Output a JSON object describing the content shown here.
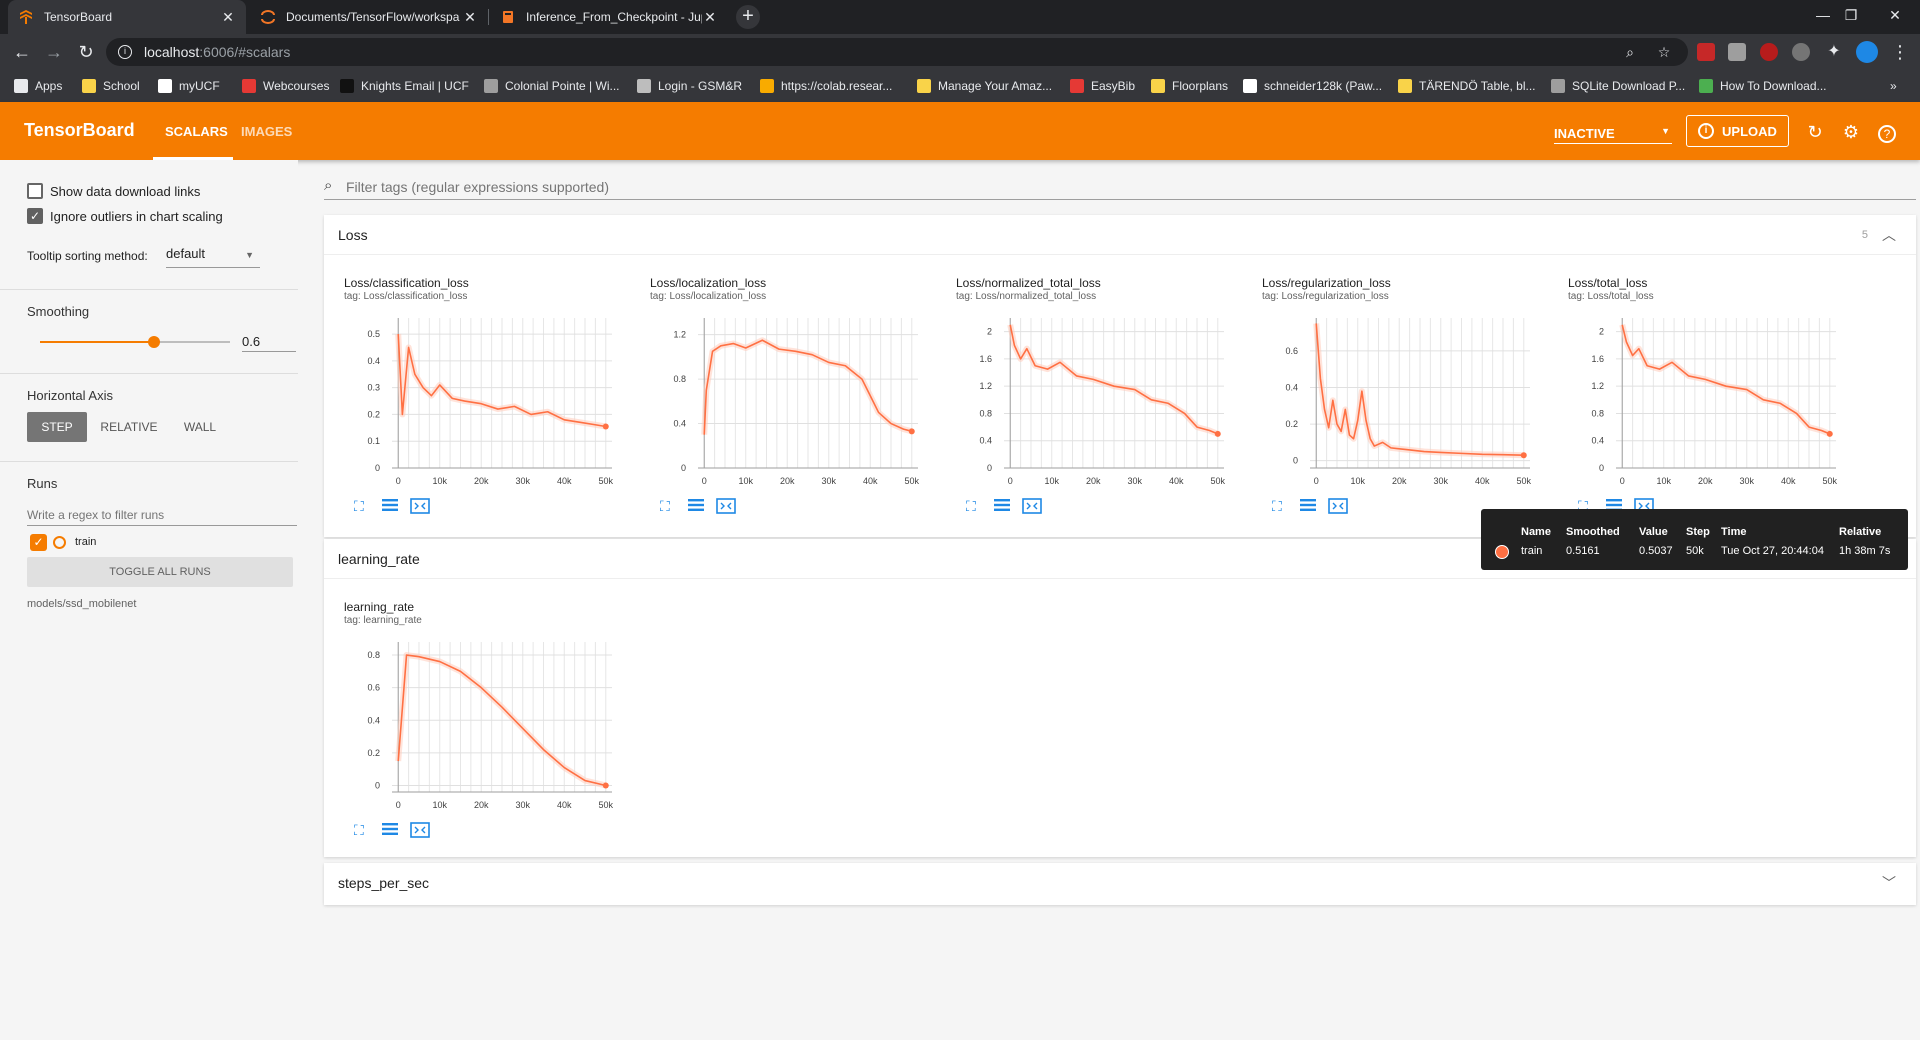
{
  "browser": {
    "tabs": [
      {
        "title": "TensorBoard",
        "active": true
      },
      {
        "title": "Documents/TensorFlow/workspa",
        "active": false
      },
      {
        "title": "Inference_From_Checkpoint - Jup",
        "active": false
      }
    ],
    "url_host": "localhost",
    "url_path": ":6006/#scalars",
    "bookmarks": [
      {
        "label": "Apps",
        "icon": "apps-grid-icon",
        "color": "#e8eaed"
      },
      {
        "label": "School",
        "icon": "folder-icon",
        "color": "#f9d349"
      },
      {
        "label": "myUCF",
        "icon": "ucf-icon",
        "color": "#ffffff"
      },
      {
        "label": "Webcourses",
        "icon": "canvas-icon",
        "color": "#e53935"
      },
      {
        "label": "Knights Email | UCF",
        "icon": "knight-icon",
        "color": "#111111"
      },
      {
        "label": "Colonial Pointe | Wi...",
        "icon": "colonial-icon",
        "color": "#9e9e9e"
      },
      {
        "label": "Login - GSM&R",
        "icon": "gsmr-icon",
        "color": "#bdbdbd"
      },
      {
        "label": "https://colab.resear...",
        "icon": "colab-icon",
        "color": "#f9ab00"
      },
      {
        "label": "Manage Your Amaz...",
        "icon": "amazon-icon",
        "color": "#f9d349"
      },
      {
        "label": "EasyBib",
        "icon": "easybib-icon",
        "color": "#e53935"
      },
      {
        "label": "Floorplans",
        "icon": "folder-icon",
        "color": "#f9d349"
      },
      {
        "label": "schneider128k (Paw...",
        "icon": "github-icon",
        "color": "#ffffff"
      },
      {
        "label": "TÄRENDÖ Table, bl...",
        "icon": "ikea-icon",
        "color": "#f9d349"
      },
      {
        "label": "SQLite Download P...",
        "icon": "sqlite-icon",
        "color": "#9e9e9e"
      },
      {
        "label": "How To Download...",
        "icon": "stack-icon",
        "color": "#4caf50"
      }
    ]
  },
  "header": {
    "brand": "TensorBoard",
    "tabs": [
      "SCALARS",
      "IMAGES"
    ],
    "inactive_label": "INACTIVE",
    "upload_label": "UPLOAD"
  },
  "sidebar": {
    "show_download_links": "Show data download links",
    "ignore_outliers": "Ignore outliers in chart scaling",
    "tooltip_sorting_label": "Tooltip sorting method:",
    "tooltip_sorting_value": "default",
    "smoothing_label": "Smoothing",
    "smoothing_value": "0.6",
    "smoothing_fraction": 0.6,
    "horizontal_axis_label": "Horizontal Axis",
    "axis_options": [
      "STEP",
      "RELATIVE",
      "WALL"
    ],
    "runs_label": "Runs",
    "runs_filter_placeholder": "Write a regex to filter runs",
    "run_name": "train",
    "toggle_all_label": "TOGGLE ALL RUNS",
    "logdir": "models/ssd_mobilenet"
  },
  "main": {
    "filter_placeholder": "Filter tags (regular expressions supported)",
    "sections": [
      {
        "title": "Loss",
        "count": "5"
      },
      {
        "title": "learning_rate"
      },
      {
        "title": "steps_per_sec"
      }
    ]
  },
  "tooltip": {
    "headers": [
      "Name",
      "Smoothed",
      "Value",
      "Step",
      "Time",
      "Relative"
    ],
    "row": [
      "train",
      "0.5161",
      "0.5037",
      "50k",
      "Tue Oct 27, 20:44:04",
      "1h 38m 7s"
    ]
  },
  "colors": {
    "accent": "#f57c00",
    "series": "#ff7043",
    "icon_blue": "#1e88e5"
  },
  "chart_data": [
    {
      "type": "line",
      "title": "Loss/classification_loss",
      "tag": "tag: Loss/classification_loss",
      "xticks": [
        0,
        10000,
        20000,
        30000,
        40000,
        50000
      ],
      "xtick_labels": [
        "0",
        "10k",
        "20k",
        "30k",
        "40k",
        "50k"
      ],
      "yticks": [
        0,
        0.1,
        0.2,
        0.3,
        0.4,
        0.5
      ],
      "ytick_labels": [
        "0",
        "0.1",
        "0.2",
        "0.3",
        "0.4",
        "0.5"
      ],
      "xlim": [
        -1500,
        51500
      ],
      "ylim": [
        0,
        0.56
      ],
      "series": [
        {
          "name": "train",
          "x": [
            0,
            1000,
            2500,
            4000,
            6000,
            8000,
            10000,
            13000,
            16000,
            20000,
            24000,
            28000,
            32000,
            36000,
            40000,
            44000,
            48000,
            50000
          ],
          "y": [
            0.5,
            0.2,
            0.45,
            0.35,
            0.3,
            0.27,
            0.31,
            0.26,
            0.25,
            0.24,
            0.22,
            0.23,
            0.2,
            0.21,
            0.18,
            0.17,
            0.16,
            0.155
          ]
        }
      ]
    },
    {
      "type": "line",
      "title": "Loss/localization_loss",
      "tag": "tag: Loss/localization_loss",
      "xticks": [
        0,
        10000,
        20000,
        30000,
        40000,
        50000
      ],
      "xtick_labels": [
        "0",
        "10k",
        "20k",
        "30k",
        "40k",
        "50k"
      ],
      "yticks": [
        0,
        0.4,
        0.8,
        1.2
      ],
      "ytick_labels": [
        "0",
        "0.4",
        "0.8",
        "1.2"
      ],
      "xlim": [
        -1500,
        51500
      ],
      "ylim": [
        0,
        1.35
      ],
      "series": [
        {
          "name": "train",
          "x": [
            0,
            500,
            2000,
            4000,
            7000,
            10000,
            14000,
            18000,
            22000,
            26000,
            30000,
            34000,
            38000,
            40000,
            42000,
            45000,
            48000,
            50000
          ],
          "y": [
            0.3,
            0.7,
            1.05,
            1.1,
            1.12,
            1.08,
            1.15,
            1.07,
            1.05,
            1.02,
            0.95,
            0.92,
            0.8,
            0.65,
            0.5,
            0.4,
            0.35,
            0.33
          ]
        }
      ]
    },
    {
      "type": "line",
      "title": "Loss/normalized_total_loss",
      "tag": "tag: Loss/normalized_total_loss",
      "xticks": [
        0,
        10000,
        20000,
        30000,
        40000,
        50000
      ],
      "xtick_labels": [
        "0",
        "10k",
        "20k",
        "30k",
        "40k",
        "50k"
      ],
      "yticks": [
        0,
        0.4,
        0.8,
        1.2,
        1.6,
        2
      ],
      "ytick_labels": [
        "0",
        "0.4",
        "0.8",
        "1.2",
        "1.6",
        "2"
      ],
      "xlim": [
        -1500,
        51500
      ],
      "ylim": [
        0,
        2.2
      ],
      "series": [
        {
          "name": "train",
          "x": [
            0,
            1000,
            2500,
            4000,
            6000,
            9000,
            12000,
            16000,
            20000,
            25000,
            30000,
            34000,
            38000,
            42000,
            45000,
            48000,
            50000
          ],
          "y": [
            2.1,
            1.8,
            1.6,
            1.75,
            1.5,
            1.45,
            1.55,
            1.35,
            1.3,
            1.2,
            1.15,
            1.0,
            0.95,
            0.8,
            0.6,
            0.55,
            0.5
          ]
        }
      ]
    },
    {
      "type": "line",
      "title": "Loss/regularization_loss",
      "tag": "tag: Loss/regularization_loss",
      "xticks": [
        0,
        10000,
        20000,
        30000,
        40000,
        50000
      ],
      "xtick_labels": [
        "0",
        "10k",
        "20k",
        "30k",
        "40k",
        "50k"
      ],
      "yticks": [
        0,
        0.2,
        0.4,
        0.6
      ],
      "ytick_labels": [
        "0",
        "0.2",
        "0.4",
        "0.6"
      ],
      "xlim": [
        -1500,
        51500
      ],
      "ylim": [
        -0.04,
        0.78
      ],
      "series": [
        {
          "name": "train",
          "x": [
            0,
            1000,
            2000,
            3000,
            4000,
            5000,
            6000,
            7000,
            8000,
            9000,
            10000,
            11000,
            12000,
            13000,
            14000,
            16000,
            18000,
            22000,
            26000,
            30000,
            35000,
            40000,
            45000,
            50000
          ],
          "y": [
            0.75,
            0.45,
            0.28,
            0.18,
            0.33,
            0.2,
            0.16,
            0.28,
            0.14,
            0.12,
            0.22,
            0.38,
            0.22,
            0.12,
            0.08,
            0.1,
            0.07,
            0.06,
            0.05,
            0.045,
            0.04,
            0.035,
            0.033,
            0.03
          ]
        }
      ]
    },
    {
      "type": "line",
      "title": "Loss/total_loss",
      "tag": "tag: Loss/total_loss",
      "xticks": [
        0,
        10000,
        20000,
        30000,
        40000,
        50000
      ],
      "xtick_labels": [
        "0",
        "10k",
        "20k",
        "30k",
        "40k",
        "50k"
      ],
      "yticks": [
        0,
        0.4,
        0.8,
        1.2,
        1.6,
        2
      ],
      "ytick_labels": [
        "0",
        "0.4",
        "0.8",
        "1.2",
        "1.6",
        "2"
      ],
      "xlim": [
        -1500,
        51500
      ],
      "ylim": [
        0,
        2.2
      ],
      "series": [
        {
          "name": "train",
          "x": [
            0,
            1000,
            2500,
            4000,
            6000,
            9000,
            12000,
            16000,
            20000,
            25000,
            30000,
            34000,
            38000,
            42000,
            45000,
            48000,
            50000
          ],
          "y": [
            2.1,
            1.85,
            1.65,
            1.75,
            1.5,
            1.45,
            1.55,
            1.35,
            1.3,
            1.2,
            1.15,
            1.0,
            0.95,
            0.8,
            0.6,
            0.55,
            0.5
          ]
        }
      ]
    },
    {
      "type": "line",
      "title": "learning_rate",
      "tag": "tag: learning_rate",
      "xticks": [
        0,
        10000,
        20000,
        30000,
        40000,
        50000
      ],
      "xtick_labels": [
        "0",
        "10k",
        "20k",
        "30k",
        "40k",
        "50k"
      ],
      "yticks": [
        0,
        0.2,
        0.4,
        0.6,
        0.8
      ],
      "ytick_labels": [
        "0",
        "0.2",
        "0.4",
        "0.6",
        "0.8"
      ],
      "xlim": [
        -1500,
        51500
      ],
      "ylim": [
        -0.04,
        0.88
      ],
      "series": [
        {
          "name": "train",
          "x": [
            0,
            2000,
            5000,
            10000,
            15000,
            20000,
            25000,
            30000,
            35000,
            40000,
            45000,
            50000
          ],
          "y": [
            0.15,
            0.8,
            0.79,
            0.76,
            0.7,
            0.6,
            0.48,
            0.35,
            0.22,
            0.11,
            0.03,
            0.0
          ]
        }
      ]
    }
  ]
}
